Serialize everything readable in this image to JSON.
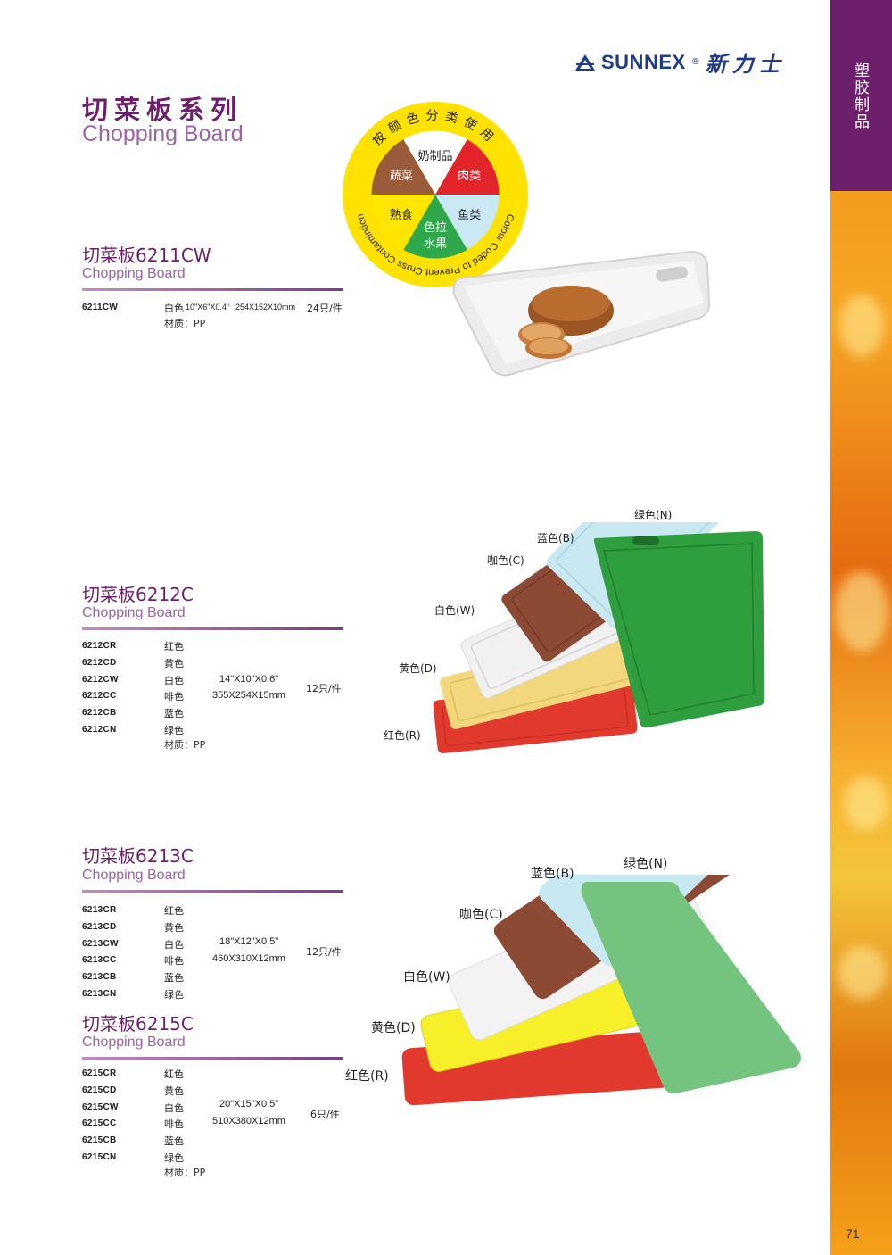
{
  "brand": {
    "name": "SUNNEX",
    "reg": "®",
    "name_cn": "新力士"
  },
  "sidebar": {
    "label": "塑胶制品"
  },
  "page_number": "71",
  "page_title": {
    "cn": "切菜板系列",
    "en": "Chopping Board"
  },
  "wheel": {
    "ring_cn": "按颜色分类使用",
    "ring_en": "Colour Coded to Prevent Cross Contamintion",
    "segments": [
      {
        "label": "奶制品",
        "color": "#ffffff"
      },
      {
        "label": "肉类",
        "color": "#e3242b"
      },
      {
        "label": "鱼类",
        "color": "#cbe9f4"
      },
      {
        "label": "色拉水果",
        "line1": "色拉",
        "line2": "水果",
        "color": "#2ea84a"
      },
      {
        "label": "熟食",
        "color": "#ffe600"
      },
      {
        "label": "蔬菜",
        "color": "#9a5b3b"
      }
    ],
    "ring_color": "#ffe200"
  },
  "section_6211": {
    "title_cn": "切菜板6211CW",
    "title_en": "Chopping Board",
    "code": "6211CW",
    "color": "白色",
    "spec_in": "10\"X6\"X0.4\"",
    "spec_mm": "254X152X10mm",
    "pack": "24只/件",
    "material": "材质：PP"
  },
  "section_6212": {
    "title_cn": "切菜板6212C",
    "title_en": "Chopping Board",
    "items": [
      {
        "code": "6212CR",
        "color": "红色"
      },
      {
        "code": "6212CD",
        "color": "黄色"
      },
      {
        "code": "6212CW",
        "color": "白色"
      },
      {
        "code": "6212CC",
        "color": "啡色"
      },
      {
        "code": "6212CB",
        "color": "蓝色"
      },
      {
        "code": "6212CN",
        "color": "绿色"
      }
    ],
    "spec_in": "14\"X10\"X0.6\"",
    "spec_mm": "355X254X15mm",
    "pack": "12只/件",
    "material": "材质：PP",
    "labels": [
      "绿色(N)",
      "蓝色(B)",
      "咖色(C)",
      "白色(W)",
      "黄色(D)",
      "红色(R)"
    ]
  },
  "section_6213": {
    "title_cn": "切菜板6213C",
    "title_en": "Chopping Board",
    "items": [
      {
        "code": "6213CR",
        "color": "红色"
      },
      {
        "code": "6213CD",
        "color": "黄色"
      },
      {
        "code": "6213CW",
        "color": "白色"
      },
      {
        "code": "6213CC",
        "color": "啡色"
      },
      {
        "code": "6213CB",
        "color": "蓝色"
      },
      {
        "code": "6213CN",
        "color": "绿色"
      }
    ],
    "spec_in": "18\"X12\"X0.5\"",
    "spec_mm": "460X310X12mm",
    "pack": "12只/件"
  },
  "section_6215": {
    "title_cn": "切菜板6215C",
    "title_en": "Chopping Board",
    "items": [
      {
        "code": "6215CR",
        "color": "红色"
      },
      {
        "code": "6215CD",
        "color": "黄色"
      },
      {
        "code": "6215CW",
        "color": "白色"
      },
      {
        "code": "6215CC",
        "color": "啡色"
      },
      {
        "code": "6215CB",
        "color": "蓝色"
      },
      {
        "code": "6215CN",
        "color": "绿色"
      }
    ],
    "spec_in": "20\"X15\"X0.5\"",
    "spec_mm": "510X380X12mm",
    "pack": "6只/件",
    "material": "材质：PP",
    "labels": [
      "绿色(N)",
      "蓝色(B)",
      "咖色(C)",
      "白色(W)",
      "黄色(D)",
      "红色(R)"
    ]
  },
  "board_colors": {
    "red": "#e2392f",
    "yellow": "#f3d77c",
    "white": "#f1f1f1",
    "brown": "#8c4a34",
    "blue": "#c8e9f2",
    "green": "#2f9e3e"
  }
}
